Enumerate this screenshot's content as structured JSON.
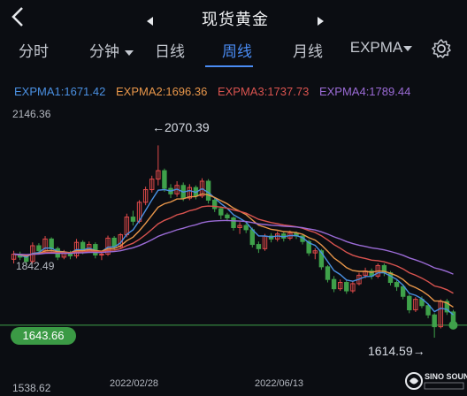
{
  "header": {
    "title": "现货黄金"
  },
  "tabs": [
    {
      "label": "分时"
    },
    {
      "label": "分钟"
    },
    {
      "label": "日线"
    },
    {
      "label": "周线"
    },
    {
      "label": "月线"
    },
    {
      "label": "EXPMA"
    }
  ],
  "legend": {
    "expma1": "EXPMA1:1671.42",
    "expma2": "EXPMA2:1696.36",
    "expma3": "EXPMA3:1737.73",
    "expma4": "EXPMA4:1789.44"
  },
  "colors": {
    "expma1": "#4a90e2",
    "expma2": "#e8964a",
    "expma3": "#d9534f",
    "expma4": "#9b6bd6",
    "up": "#e04a4a",
    "down": "#3fa14a",
    "accent": "#4a8cf4"
  },
  "chart": {
    "y_max_label": "2146.36",
    "y_min_label": "1538.62",
    "mid_label": "1842.49",
    "high_label": "2070.39",
    "low_label": "1614.59",
    "current_price": "1643.66",
    "x_labels": [
      "2022/02/28",
      "2022/06/13"
    ]
  },
  "chart_data": {
    "type": "candlestick",
    "ylim": [
      1538.62,
      2146.36
    ],
    "x_labels": [
      "2022/02/28",
      "2022/06/13"
    ],
    "candles": [
      [
        1800,
        1812,
        1790,
        1820
      ],
      [
        1812,
        1805,
        1798,
        1818
      ],
      [
        1805,
        1795,
        1785,
        1812
      ],
      [
        1795,
        1832,
        1790,
        1840
      ],
      [
        1832,
        1820,
        1812,
        1838
      ],
      [
        1820,
        1848,
        1815,
        1855
      ],
      [
        1848,
        1825,
        1818,
        1852
      ],
      [
        1825,
        1805,
        1798,
        1830
      ],
      [
        1805,
        1815,
        1800,
        1822
      ],
      [
        1815,
        1808,
        1800,
        1820
      ],
      [
        1808,
        1840,
        1802,
        1848
      ],
      [
        1840,
        1820,
        1812,
        1845
      ],
      [
        1820,
        1835,
        1815,
        1842
      ],
      [
        1835,
        1810,
        1802,
        1840
      ],
      [
        1810,
        1812,
        1798,
        1818
      ],
      [
        1812,
        1850,
        1808,
        1856
      ],
      [
        1850,
        1830,
        1822,
        1855
      ],
      [
        1830,
        1858,
        1825,
        1862
      ],
      [
        1858,
        1900,
        1852,
        1908
      ],
      [
        1900,
        1890,
        1880,
        1915
      ],
      [
        1890,
        1935,
        1885,
        1940
      ],
      [
        1935,
        1965,
        1928,
        1972
      ],
      [
        1965,
        1990,
        1958,
        1998
      ],
      [
        1990,
        2010,
        1975,
        2070
      ],
      [
        2010,
        1968,
        1960,
        2015
      ],
      [
        1968,
        1955,
        1945,
        1978
      ],
      [
        1955,
        1975,
        1948,
        1985
      ],
      [
        1975,
        1945,
        1938,
        1982
      ],
      [
        1945,
        1970,
        1940,
        1978
      ],
      [
        1970,
        1950,
        1942,
        1975
      ],
      [
        1950,
        1985,
        1945,
        1992
      ],
      [
        1985,
        1940,
        1932,
        1990
      ],
      [
        1940,
        1920,
        1912,
        1945
      ],
      [
        1920,
        1905,
        1895,
        1925
      ],
      [
        1905,
        1898,
        1890,
        1910
      ],
      [
        1898,
        1875,
        1868,
        1902
      ],
      [
        1875,
        1880,
        1860,
        1888
      ],
      [
        1880,
        1870,
        1862,
        1885
      ],
      [
        1870,
        1835,
        1828,
        1875
      ],
      [
        1835,
        1825,
        1815,
        1842
      ],
      [
        1825,
        1855,
        1820,
        1860
      ],
      [
        1855,
        1848,
        1840,
        1862
      ],
      [
        1848,
        1860,
        1842,
        1866
      ],
      [
        1860,
        1850,
        1842,
        1865
      ],
      [
        1850,
        1862,
        1845,
        1868
      ],
      [
        1862,
        1855,
        1848,
        1866
      ],
      [
        1855,
        1842,
        1835,
        1860
      ],
      [
        1842,
        1815,
        1808,
        1846
      ],
      [
        1815,
        1820,
        1800,
        1826
      ],
      [
        1820,
        1782,
        1775,
        1824
      ],
      [
        1782,
        1752,
        1745,
        1786
      ],
      [
        1752,
        1730,
        1722,
        1760
      ],
      [
        1730,
        1745,
        1725,
        1752
      ],
      [
        1745,
        1725,
        1718,
        1750
      ],
      [
        1725,
        1742,
        1720,
        1748
      ],
      [
        1742,
        1762,
        1738,
        1768
      ],
      [
        1762,
        1772,
        1755,
        1780
      ],
      [
        1772,
        1760,
        1752,
        1778
      ],
      [
        1760,
        1785,
        1755,
        1790
      ],
      [
        1785,
        1768,
        1760,
        1790
      ],
      [
        1768,
        1745,
        1738,
        1772
      ],
      [
        1745,
        1735,
        1725,
        1750
      ],
      [
        1735,
        1712,
        1705,
        1740
      ],
      [
        1712,
        1680,
        1672,
        1716
      ],
      [
        1680,
        1705,
        1675,
        1710
      ],
      [
        1705,
        1690,
        1684,
        1712
      ],
      [
        1690,
        1668,
        1660,
        1695
      ],
      [
        1668,
        1640,
        1614,
        1672
      ],
      [
        1640,
        1700,
        1636,
        1705
      ],
      [
        1700,
        1675,
        1668,
        1706
      ],
      [
        1675,
        1643,
        1635,
        1680
      ]
    ],
    "series": [
      {
        "name": "EXPMA1",
        "last": 1671.42
      },
      {
        "name": "EXPMA2",
        "last": 1696.36
      },
      {
        "name": "EXPMA3",
        "last": 1737.73
      },
      {
        "name": "EXPMA4",
        "last": 1789.44
      }
    ]
  }
}
